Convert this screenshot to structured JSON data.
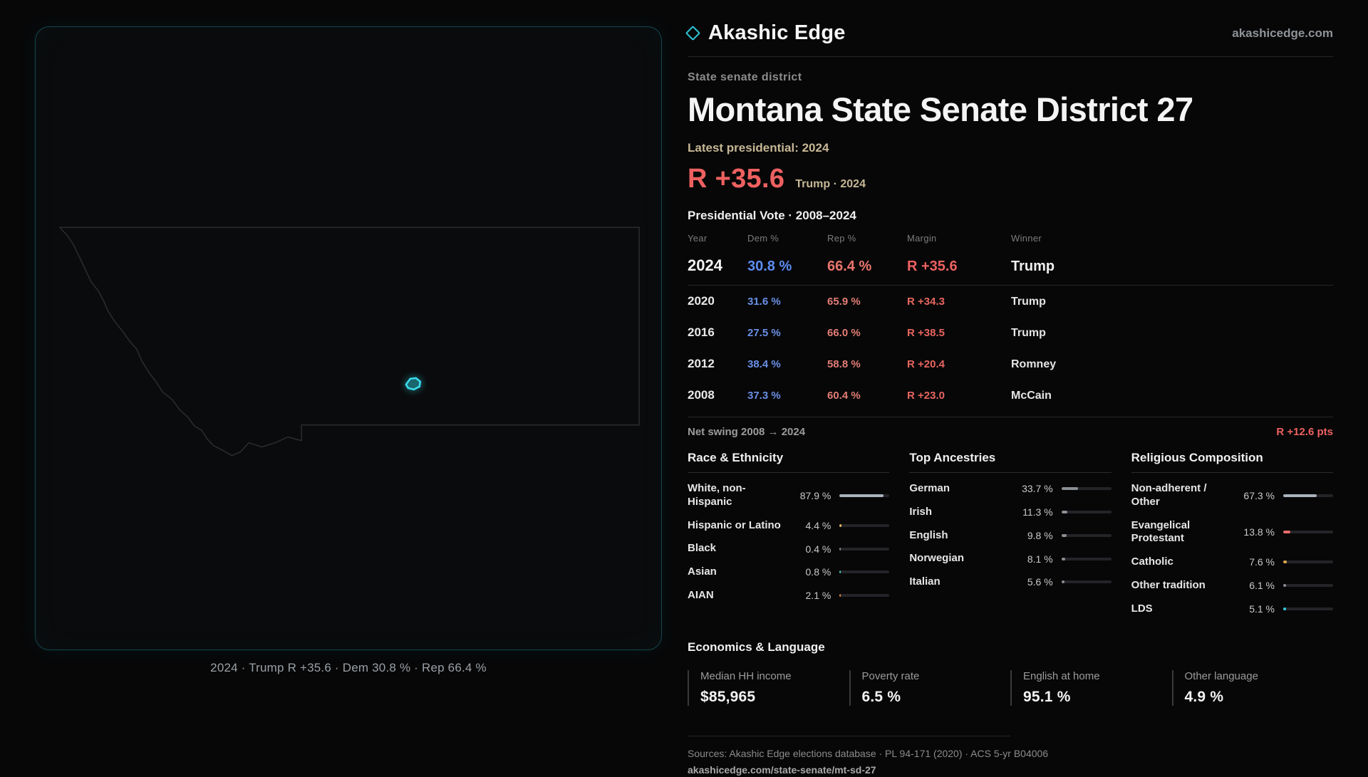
{
  "brand": {
    "name": "Akashic Edge",
    "site": "akashicedge.com"
  },
  "map": {
    "caption": "2024 · Trump R +35.6 · Dem 30.8 % · Rep 66.4 %"
  },
  "header": {
    "kicker": "State senate district",
    "title": "Montana State Senate District 27",
    "latest": "Latest presidential: 2024",
    "margin_big": "R +35.6",
    "margin_sub": "Trump · 2024"
  },
  "vote_table": {
    "title": "Presidential Vote · 2008–2024",
    "columns": {
      "year": "Year",
      "dem": "Dem %",
      "rep": "Rep %",
      "margin": "Margin",
      "winner": "Winner"
    },
    "rows": [
      {
        "year": "2024",
        "dem": "30.8 %",
        "rep": "66.4 %",
        "margin": "R +35.6",
        "winner": "Trump"
      },
      {
        "year": "2020",
        "dem": "31.6 %",
        "rep": "65.9 %",
        "margin": "R +34.3",
        "winner": "Trump"
      },
      {
        "year": "2016",
        "dem": "27.5 %",
        "rep": "66.0 %",
        "margin": "R +38.5",
        "winner": "Trump"
      },
      {
        "year": "2012",
        "dem": "38.4 %",
        "rep": "58.8 %",
        "margin": "R +20.4",
        "winner": "Romney"
      },
      {
        "year": "2008",
        "dem": "37.3 %",
        "rep": "60.4 %",
        "margin": "R +23.0",
        "winner": "McCain"
      }
    ],
    "net_swing_label": "Net swing 2008 → 2024",
    "net_swing_value": "R +12.6 pts"
  },
  "demographics": {
    "race": {
      "title": "Race & Ethnicity",
      "rows": [
        {
          "label": "White, non-Hispanic",
          "value": "87.9 %",
          "pct": 87.9,
          "color": "#aab2bc"
        },
        {
          "label": "Hispanic or Latino",
          "value": "4.4 %",
          "pct": 4.4,
          "color": "#e3b85c"
        },
        {
          "label": "Black",
          "value": "0.4 %",
          "pct": 0.4,
          "color": "#8a8f94"
        },
        {
          "label": "Asian",
          "value": "0.8 %",
          "pct": 0.8,
          "color": "#49c7b8"
        },
        {
          "label": "AIAN",
          "value": "2.1 %",
          "pct": 2.1,
          "color": "#e0873f"
        }
      ]
    },
    "ancestries": {
      "title": "Top Ancestries",
      "rows": [
        {
          "label": "German",
          "value": "33.7 %",
          "pct": 33.7,
          "color": "#8a8f94"
        },
        {
          "label": "Irish",
          "value": "11.3 %",
          "pct": 11.3,
          "color": "#8a8f94"
        },
        {
          "label": "English",
          "value": "9.8 %",
          "pct": 9.8,
          "color": "#8a8f94"
        },
        {
          "label": "Norwegian",
          "value": "8.1 %",
          "pct": 8.1,
          "color": "#8a8f94"
        },
        {
          "label": "Italian",
          "value": "5.6 %",
          "pct": 5.6,
          "color": "#8a8f94"
        }
      ]
    },
    "religion": {
      "title": "Religious Composition",
      "rows": [
        {
          "label": "Non-adherent / Other",
          "value": "67.3 %",
          "pct": 67.3,
          "color": "#aab2bc"
        },
        {
          "label": "Evangelical Protestant",
          "value": "13.8 %",
          "pct": 13.8,
          "color": "#e86a6a"
        },
        {
          "label": "Catholic",
          "value": "7.6 %",
          "pct": 7.6,
          "color": "#e0a84f"
        },
        {
          "label": "Other tradition",
          "value": "6.1 %",
          "pct": 6.1,
          "color": "#8a8f94"
        },
        {
          "label": "LDS",
          "value": "5.1 %",
          "pct": 5.1,
          "color": "#35d0e0"
        }
      ]
    }
  },
  "economics": {
    "title": "Economics & Language",
    "stats": [
      {
        "label": "Median HH income",
        "value": "$85,965"
      },
      {
        "label": "Poverty rate",
        "value": "6.5 %"
      },
      {
        "label": "English at home",
        "value": "95.1 %"
      },
      {
        "label": "Other language",
        "value": "4.9 %"
      }
    ]
  },
  "footer": {
    "sources": "Sources: Akashic Edge elections database · PL 94-171 (2020) · ACS 5-yr B04006",
    "permalink": "akashicedge.com/state-senate/mt-sd-27"
  },
  "colors": {
    "accent": "#2fc4d6",
    "rep": "#ee6160",
    "dem": "#5b8cf0",
    "tan": "#c6b794"
  }
}
